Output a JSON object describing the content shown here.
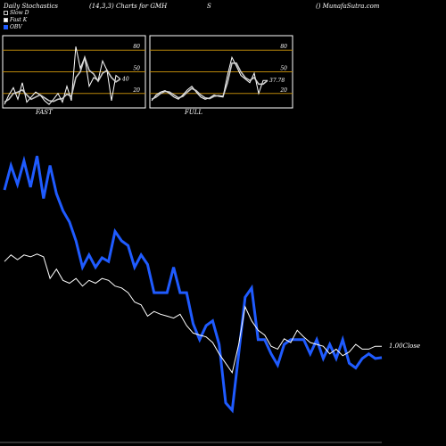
{
  "header": {
    "left": "Daily Stochastics",
    "mid": "(14,3,3) Charts for GMH",
    "s": "S",
    "right": "() MunafaSutra.com"
  },
  "legend": [
    {
      "label": "Slow  D",
      "color": "#ffffff"
    },
    {
      "label": "Fast K",
      "color": "#ffffff"
    },
    {
      "label": "OBV",
      "color": "#1f5bff"
    }
  ],
  "colors": {
    "level_line": "#b8860b",
    "obv": "#1f5bff",
    "price": "#ffffff",
    "panel_border": "#ffffff"
  },
  "chart_data": [
    {
      "type": "line",
      "title": "FAST",
      "ylim": [
        0,
        100
      ],
      "levels": [
        20,
        50,
        80
      ],
      "tick_labels": [
        "80",
        "50",
        "20"
      ],
      "last_value_label": "40",
      "series": [
        {
          "name": "Fast K",
          "values": [
            5,
            18,
            28,
            12,
            35,
            8,
            15,
            22,
            18,
            10,
            5,
            12,
            20,
            8,
            30,
            10,
            85,
            55,
            70,
            30,
            42,
            38,
            65,
            52,
            10,
            45,
            40
          ]
        },
        {
          "name": "Slow D",
          "values": [
            8,
            12,
            20,
            22,
            25,
            18,
            12,
            15,
            18,
            14,
            10,
            9,
            12,
            13,
            19,
            16,
            42,
            50,
            70,
            52,
            47,
            37,
            48,
            52,
            42,
            36,
            40
          ]
        }
      ]
    },
    {
      "type": "line",
      "title": "FULL",
      "ylim": [
        0,
        100
      ],
      "levels": [
        20,
        50,
        80
      ],
      "tick_labels": [
        "80",
        "50",
        "20"
      ],
      "last_value_label": "37.78",
      "series": [
        {
          "name": "Fast K",
          "values": [
            10,
            18,
            22,
            24,
            20,
            15,
            12,
            18,
            25,
            30,
            22,
            15,
            12,
            14,
            18,
            16,
            15,
            45,
            70,
            58,
            45,
            40,
            35,
            48,
            20,
            38,
            38
          ]
        },
        {
          "name": "Slow D",
          "values": [
            12,
            15,
            20,
            23,
            22,
            18,
            14,
            16,
            22,
            27,
            24,
            18,
            14,
            13,
            16,
            17,
            16,
            35,
            62,
            62,
            50,
            42,
            38,
            42,
            33,
            33,
            38
          ]
        }
      ]
    },
    {
      "type": "line",
      "title": "",
      "series": [
        {
          "name": "OBV",
          "values": [
            216,
            190,
            210,
            185,
            213,
            180,
            225,
            190,
            220,
            238,
            250,
            270,
            298,
            285,
            298,
            288,
            292,
            260,
            270,
            275,
            298,
            285,
            295,
            325,
            325,
            325,
            298,
            325,
            325,
            358,
            375,
            360,
            355,
            380,
            442,
            450,
            390,
            330,
            320,
            375,
            375,
            390,
            402,
            380,
            375,
            375,
            375,
            390,
            375,
            395,
            380,
            395,
            375,
            400,
            405,
            395,
            390,
            395,
            394
          ]
        },
        {
          "name": "Close",
          "values": [
            292,
            285,
            290,
            285,
            287,
            284,
            287,
            310,
            300,
            312,
            315,
            310,
            318,
            312,
            315,
            310,
            312,
            318,
            320,
            325,
            335,
            338,
            350,
            345,
            348,
            350,
            352,
            348,
            360,
            368,
            370,
            372,
            378,
            390,
            400,
            410,
            380,
            340,
            355,
            365,
            370,
            382,
            385,
            374,
            378,
            365,
            372,
            378,
            380,
            382,
            390,
            385,
            392,
            388,
            380,
            385,
            385,
            382,
            382
          ]
        }
      ],
      "last_value_label": "1.00Close"
    }
  ]
}
